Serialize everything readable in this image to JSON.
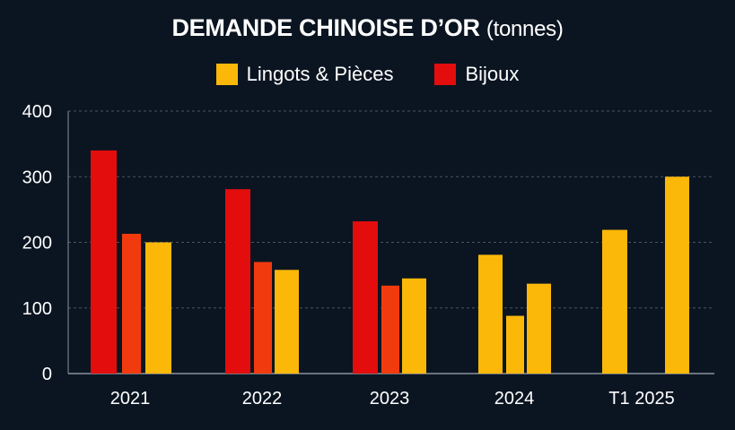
{
  "chart_data": {
    "type": "bar",
    "title": "DEMANDE CHINOISE D’OR",
    "title_unit": "(tonnes)",
    "categories": [
      "2021",
      "2022",
      "2023",
      "2024",
      "T1 2025"
    ],
    "legend": [
      {
        "name": "Lingots & Pièces",
        "color": "#fbb809"
      },
      {
        "name": "Bijoux",
        "color": "#e30d0d"
      }
    ],
    "bars": [
      {
        "category": "2021",
        "values": [
          340,
          213,
          200
        ],
        "colors": [
          "#e30d0d",
          "#f23a0f",
          "#fbb809"
        ]
      },
      {
        "category": "2022",
        "values": [
          281,
          170,
          158
        ],
        "colors": [
          "#e30d0d",
          "#f23a0f",
          "#fbb809"
        ]
      },
      {
        "category": "2023",
        "values": [
          232,
          134,
          145
        ],
        "colors": [
          "#e30d0d",
          "#f23a0f",
          "#fbb809"
        ]
      },
      {
        "category": "2024",
        "values": [
          181,
          88,
          137
        ],
        "colors": [
          "#fbb809",
          "#fbb809",
          "#fbb809"
        ]
      },
      {
        "category": "T1 2025",
        "values": [
          219,
          300
        ],
        "colors": [
          "#fbb809",
          "#fbb809"
        ]
      }
    ],
    "yticks": [
      "0",
      "100",
      "200",
      "300",
      "400"
    ],
    "ylim": [
      0,
      400
    ],
    "grid": true,
    "legend_position": "top-center",
    "colors": {
      "background": "#0b1521",
      "grid": "#4a5563",
      "axis": "#8a939e"
    }
  }
}
